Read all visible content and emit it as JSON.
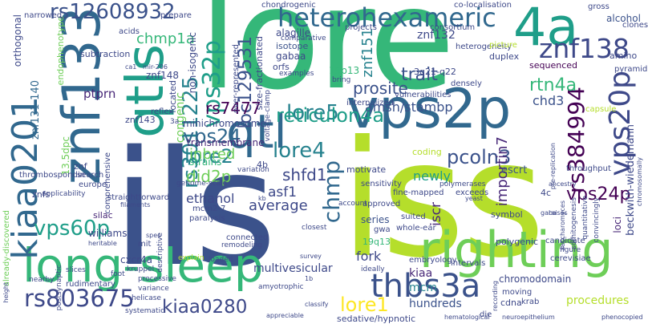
{
  "words": [
    {
      "text": "lore",
      "color": "#35b779"
    },
    {
      "text": "ils",
      "color": "#3b528b"
    },
    {
      "text": "iss",
      "color": "#b5de2b"
    },
    {
      "text": "righting",
      "color": "#6ece58"
    },
    {
      "text": "vps2p",
      "color": "#31688e"
    },
    {
      "text": "long-sleep",
      "color": "#35b779"
    },
    {
      "text": "kiaa0201",
      "color": "#31688e"
    },
    {
      "text": "znf133",
      "color": "#31688e"
    },
    {
      "text": "qtls",
      "color": "#1f9e89"
    },
    {
      "text": "qtl",
      "color": "#31688e"
    },
    {
      "text": "4a",
      "color": "#1f9e89"
    },
    {
      "text": "heterohexameric",
      "color": "#31688e"
    },
    {
      "text": "znf138",
      "color": "#3e4989"
    },
    {
      "text": "vps20p",
      "color": "#3e4989"
    },
    {
      "text": "rs384994",
      "color": "#440154"
    },
    {
      "text": "rs12608932",
      "color": "#3b528b"
    },
    {
      "text": "thbs3a",
      "color": "#3b528b"
    },
    {
      "text": "rs803675",
      "color": "#3e4989"
    },
    {
      "text": "vps60p",
      "color": "#1f9e89"
    },
    {
      "text": "vps32p",
      "color": "#1f9e89"
    },
    {
      "text": "rs3011225",
      "color": "#26828e"
    },
    {
      "text": "kiaa0280",
      "color": "#3e4989"
    },
    {
      "text": "lore5",
      "color": "#26828e"
    },
    {
      "text": "lore2",
      "color": "#26828e"
    },
    {
      "text": "lore4",
      "color": "#26828e"
    },
    {
      "text": "lore1",
      "color": "#fde725"
    },
    {
      "text": "vps24",
      "color": "#31688e"
    },
    {
      "text": "vps24p",
      "color": "#440154"
    },
    {
      "text": "chmp",
      "color": "#31688e"
    },
    {
      "text": "chmp1a",
      "color": "#35b779"
    },
    {
      "text": "did2p",
      "color": "#6ece58"
    },
    {
      "text": "loc129531",
      "color": "#3b528b"
    },
    {
      "text": "reticulon4a",
      "color": "#1f9e89"
    },
    {
      "text": "rs7477",
      "color": "#440154"
    },
    {
      "text": "amsh/stambp",
      "color": "#3b528b"
    },
    {
      "text": "prosite",
      "color": "#3b528b"
    },
    {
      "text": "pcoln3",
      "color": "#3b528b"
    },
    {
      "text": "znf151",
      "color": "#26828e"
    },
    {
      "text": "znf132",
      "color": "#3e4989"
    },
    {
      "text": "trait",
      "color": "#3b528b"
    },
    {
      "text": "rtn4a",
      "color": "#35b779"
    },
    {
      "text": "chd3",
      "color": "#3b528b"
    },
    {
      "text": "importin7",
      "color": "#482878"
    },
    {
      "text": "iscr",
      "color": "#482878"
    },
    {
      "text": "shfd1",
      "color": "#3e4989"
    },
    {
      "text": "asf1",
      "color": "#3e4989"
    },
    {
      "text": "inbred",
      "color": "#6ece58"
    },
    {
      "text": "congenic",
      "color": "#6ece58"
    },
    {
      "text": "ptprn",
      "color": "#482878"
    },
    {
      "text": "ethanol",
      "color": "#3e4989"
    },
    {
      "text": "average",
      "color": "#3e4989"
    },
    {
      "text": "newly",
      "color": "#1f9e89"
    },
    {
      "text": "kiaa",
      "color": "#482878"
    },
    {
      "text": "mcm",
      "color": "#26828e"
    },
    {
      "text": "minichromosome",
      "color": "#3e4989"
    },
    {
      "text": "znf131-140",
      "color": "#31688e"
    },
    {
      "text": "13.5dpc",
      "color": "#6ece58"
    },
    {
      "text": "transmembrane",
      "color": "#482878"
    },
    {
      "text": "multivesicular",
      "color": "#3e4989"
    },
    {
      "text": "hundreds",
      "color": "#3b528b"
    },
    {
      "text": "sedative/hypnotic",
      "color": "#3e4989"
    },
    {
      "text": "procedures",
      "color": "#b5de2b"
    },
    {
      "text": "chromodomain",
      "color": "#3e4989"
    },
    {
      "text": "escrt",
      "color": "#3b528b"
    },
    {
      "text": "beckwith-wiedemann",
      "color": "#3e4989"
    },
    {
      "text": "loci",
      "color": "#482878"
    },
    {
      "text": "alcohol",
      "color": "#3b528b"
    },
    {
      "text": "amino",
      "color": "#3e4989"
    },
    {
      "text": "duplex",
      "color": "#3e4989"
    },
    {
      "text": "sequenced",
      "color": "#440154"
    },
    {
      "text": "cxcr4a",
      "color": "#3e4989"
    },
    {
      "text": "series",
      "color": "#3b528b"
    },
    {
      "text": "alagille",
      "color": "#3e4989"
    },
    {
      "text": "gabaa",
      "color": "#3e4989"
    },
    {
      "text": "isotope",
      "color": "#3b528b"
    },
    {
      "text": "orfs",
      "color": "#3e4989"
    },
    {
      "text": "19p13",
      "color": "#35b779"
    },
    {
      "text": "19q13",
      "color": "#35b779"
    },
    {
      "text": "3q21-q22",
      "color": "#3e4989"
    },
    {
      "text": "williams",
      "color": "#3e4989"
    },
    {
      "text": "znf148",
      "color": "#3e4989"
    },
    {
      "text": "znf143",
      "color": "#3e4989"
    },
    {
      "text": "znf",
      "color": "#3e4989"
    },
    {
      "text": "znfs",
      "color": "#3e4989"
    },
    {
      "text": "silac",
      "color": "#482878"
    },
    {
      "text": "4b",
      "color": "#3e4989"
    },
    {
      "text": "4c",
      "color": "#3e4989"
    },
    {
      "text": "cdna",
      "color": "#3e4989"
    },
    {
      "text": "die",
      "color": "#3e4989"
    },
    {
      "text": "krab",
      "color": "#3e4989"
    },
    {
      "text": "endophenotype",
      "color": "#6ece58"
    },
    {
      "text": "orthogonal",
      "color": "#3e4989"
    },
    {
      "text": "narrowed",
      "color": "#3e4989"
    },
    {
      "text": "subtraction",
      "color": "#3e4989"
    },
    {
      "text": "acids",
      "color": "#3e4989"
    },
    {
      "text": "prepare",
      "color": "#3e4989"
    },
    {
      "text": "projects",
      "color": "#3e4989"
    },
    {
      "text": "consortium",
      "color": "#3e4989"
    },
    {
      "text": "clones",
      "color": "#3e4989"
    },
    {
      "text": "pyramidal",
      "color": "#3e4989"
    },
    {
      "text": "gross",
      "color": "#3e4989"
    },
    {
      "text": "co-localisation",
      "color": "#3e4989"
    },
    {
      "text": "chondrogenic",
      "color": "#3e4989"
    },
    {
      "text": "comparative",
      "color": "#3e4989"
    },
    {
      "text": "heterogeneity",
      "color": "#3e4989"
    },
    {
      "text": "picture",
      "color": "#b5de2b"
    },
    {
      "text": "non-isogenic",
      "color": "#3e4989"
    },
    {
      "text": "over-represented",
      "color": "#3e4989"
    },
    {
      "text": "size-fractionated",
      "color": "#3e4989"
    },
    {
      "text": "located",
      "color": "#3e4989"
    },
    {
      "text": "reflex",
      "color": "#3e4989"
    },
    {
      "text": "strains",
      "color": "#35b779"
    },
    {
      "text": "motivate",
      "color": "#3e4989"
    },
    {
      "text": "coding",
      "color": "#b5de2b"
    },
    {
      "text": "internalized",
      "color": "#3e4989"
    },
    {
      "text": "vulnerabilities",
      "color": "#3e4989"
    },
    {
      "text": "densely",
      "color": "#3e4989"
    },
    {
      "text": "bring",
      "color": "#3e4989"
    },
    {
      "text": "examples",
      "color": "#3e4989"
    },
    {
      "text": "capsule",
      "color": "#b5de2b"
    },
    {
      "text": "throughput",
      "color": "#3e4989"
    },
    {
      "text": "symbol",
      "color": "#3e4989"
    },
    {
      "text": "polygenic",
      "color": "#3e4989"
    },
    {
      "text": "candidate",
      "color": "#3e4989"
    },
    {
      "text": "sensitivity",
      "color": "#3e4989"
    },
    {
      "text": "fine-mapped",
      "color": "#3e4989"
    },
    {
      "text": "exceeds",
      "color": "#3e4989"
    },
    {
      "text": "approved",
      "color": "#3e4989"
    },
    {
      "text": "suited",
      "color": "#3e4989"
    },
    {
      "text": "whole-ear",
      "color": "#3e4989"
    },
    {
      "text": "gwa",
      "color": "#3e4989"
    },
    {
      "text": "fork",
      "color": "#3e4989"
    },
    {
      "text": "account",
      "color": "#3e4989"
    },
    {
      "text": "closest",
      "color": "#3e4989"
    },
    {
      "text": "survey",
      "color": "#3e4989"
    },
    {
      "text": "embryology",
      "color": "#3e4989"
    },
    {
      "text": "intervals",
      "color": "#3e4989"
    },
    {
      "text": "ideally",
      "color": "#3e4989"
    },
    {
      "text": "moving",
      "color": "#3e4989"
    },
    {
      "text": "cerevisiae",
      "color": "#3e4989"
    },
    {
      "text": "paralysis",
      "color": "#3e4989"
    },
    {
      "text": "connected",
      "color": "#3e4989"
    },
    {
      "text": "remodeling",
      "color": "#3e4989"
    },
    {
      "text": "mcm2-7",
      "color": "#3e4989"
    },
    {
      "text": "genome-scale",
      "color": "#3e4989"
    },
    {
      "text": "straightforward",
      "color": "#3e4989"
    },
    {
      "text": "filaments",
      "color": "#3e4989"
    },
    {
      "text": "europe",
      "color": "#3e4989"
    },
    {
      "text": "applicability",
      "color": "#3e4989"
    },
    {
      "text": "search",
      "color": "#3e4989"
    },
    {
      "text": "thrombospondin",
      "color": "#3e4989"
    },
    {
      "text": "comprehensive",
      "color": "#3e4989"
    },
    {
      "text": "already-discovered",
      "color": "#6ece58"
    },
    {
      "text": "heritable",
      "color": "#3e4989"
    },
    {
      "text": "rudimentary",
      "color": "#3e4989"
    },
    {
      "text": "postsynaptic",
      "color": "#3e4989"
    },
    {
      "text": "nearby",
      "color": "#3e4989"
    },
    {
      "text": "slices",
      "color": "#3e4989"
    },
    {
      "text": "foot",
      "color": "#3e4989"
    },
    {
      "text": "mit",
      "color": "#3e4989"
    },
    {
      "text": "explain",
      "color": "#b5de2b"
    },
    {
      "text": "kruppel",
      "color": "#3e4989"
    },
    {
      "text": "processive",
      "color": "#3e4989"
    },
    {
      "text": "variance",
      "color": "#3e4989"
    },
    {
      "text": "helicase",
      "color": "#3e4989"
    },
    {
      "text": "systematic",
      "color": "#3e4989"
    },
    {
      "text": "loaded",
      "color": "#3e4989"
    },
    {
      "text": "amyotrophic",
      "color": "#3e4989"
    },
    {
      "text": "appreciable",
      "color": "#3e4989"
    },
    {
      "text": "classify",
      "color": "#3e4989"
    },
    {
      "text": "hematological",
      "color": "#3e4989"
    },
    {
      "text": "neuroepithelium",
      "color": "#3e4989"
    },
    {
      "text": "phenocopied",
      "color": "#3e4989"
    },
    {
      "text": "somitogenesis",
      "color": "#3e4989"
    },
    {
      "text": "quantitative",
      "color": "#3e4989"
    },
    {
      "text": "convincingly",
      "color": "#3e4989"
    },
    {
      "text": "chromosomally",
      "color": "#3e4989"
    },
    {
      "text": "ancestry",
      "color": "#3e4989"
    },
    {
      "text": "polymerases",
      "color": "#3e4989"
    },
    {
      "text": "saccharomyces",
      "color": "#3e4989"
    },
    {
      "text": "pre-replication",
      "color": "#3e4989"
    },
    {
      "text": "voltage-clamp",
      "color": "#3e4989"
    },
    {
      "text": "variation",
      "color": "#3e4989"
    },
    {
      "text": "figure",
      "color": "#3e4989"
    },
    {
      "text": "spec",
      "color": "#3e4989"
    },
    {
      "text": "height",
      "color": "#3e4989"
    },
    {
      "text": "yeast",
      "color": "#3e4989"
    },
    {
      "text": "mir-206",
      "color": "#3e4989"
    },
    {
      "text": "3a",
      "color": "#3e4989"
    },
    {
      "text": "kb",
      "color": "#3e4989"
    },
    {
      "text": "1b",
      "color": "#3e4989"
    },
    {
      "text": "ca1",
      "color": "#3e4989"
    },
    {
      "text": "gaba",
      "color": "#3e4989"
    },
    {
      "text": "recording",
      "color": "#3e4989"
    },
    {
      "text": "descriptive",
      "color": "#3e4989"
    },
    {
      "text": "raises",
      "color": "#3e4989"
    }
  ]
}
